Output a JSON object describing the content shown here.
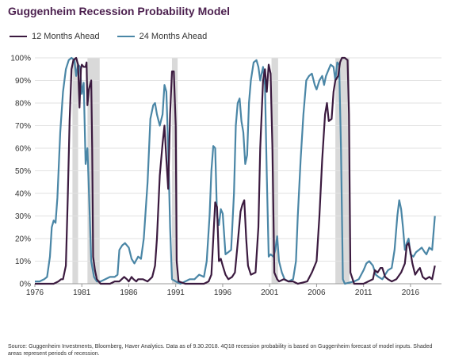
{
  "title": "Guggenheim Recession Probability Model",
  "footnote": "Source: Guggenheim Investments, Bloomberg, Haver Analytics. Data as of 9.30.2018. 4Q18 recession probability is based on Guggenheim forecast of model inputs. Shaded areas represent periods of recession.",
  "colors": {
    "series_12m": "#3b1a3f",
    "series_24m": "#4a86a6",
    "recession_shade": "#d9d9d9",
    "grid": "#e2e2e2",
    "title": "#4b1f4e"
  },
  "chart_data": {
    "type": "line",
    "title": "Guggenheim Recession Probability Model",
    "xlim": [
      1976,
      2019.3
    ],
    "ylim": [
      0,
      100
    ],
    "x_ticks": [
      1976,
      1981,
      1986,
      1991,
      1996,
      2001,
      2006,
      2011,
      2016
    ],
    "y_ticks": [
      "0%",
      "10%",
      "20%",
      "30%",
      "40%",
      "50%",
      "60%",
      "70%",
      "80%",
      "90%",
      "100%"
    ],
    "y_tick_values": [
      0,
      10,
      20,
      30,
      40,
      50,
      60,
      70,
      80,
      90,
      100
    ],
    "grid": "horizontal",
    "legend_position": "top-left",
    "recessions": [
      [
        1980.0,
        1980.6
      ],
      [
        1981.6,
        1982.9
      ],
      [
        1990.6,
        1991.2
      ],
      [
        2001.2,
        2001.9
      ],
      [
        2008.0,
        2009.5
      ]
    ],
    "series": [
      {
        "name": "12 Months Ahead",
        "color": "#3b1a3f",
        "points": [
          [
            1976.0,
            0
          ],
          [
            1977.0,
            0
          ],
          [
            1978.0,
            0
          ],
          [
            1978.5,
            1
          ],
          [
            1978.8,
            2
          ],
          [
            1979.0,
            2
          ],
          [
            1979.3,
            8
          ],
          [
            1979.5,
            38
          ],
          [
            1979.7,
            72
          ],
          [
            1979.9,
            95
          ],
          [
            1980.1,
            99
          ],
          [
            1980.4,
            100
          ],
          [
            1980.6,
            97
          ],
          [
            1980.75,
            78
          ],
          [
            1980.9,
            95
          ],
          [
            1981.0,
            97
          ],
          [
            1981.2,
            96
          ],
          [
            1981.4,
            96
          ],
          [
            1981.5,
            98
          ],
          [
            1981.6,
            79
          ],
          [
            1981.75,
            86
          ],
          [
            1982.0,
            90
          ],
          [
            1982.1,
            60
          ],
          [
            1982.2,
            12
          ],
          [
            1982.4,
            6
          ],
          [
            1982.6,
            2
          ],
          [
            1983.0,
            0
          ],
          [
            1984.0,
            0
          ],
          [
            1984.5,
            1
          ],
          [
            1985.0,
            1
          ],
          [
            1985.5,
            3
          ],
          [
            1985.8,
            2
          ],
          [
            1986.0,
            1
          ],
          [
            1986.3,
            3
          ],
          [
            1986.5,
            2
          ],
          [
            1986.8,
            1
          ],
          [
            1987.0,
            2
          ],
          [
            1987.5,
            2
          ],
          [
            1988.0,
            1
          ],
          [
            1988.5,
            3
          ],
          [
            1988.8,
            8
          ],
          [
            1989.0,
            20
          ],
          [
            1989.3,
            48
          ],
          [
            1989.6,
            62
          ],
          [
            1989.8,
            70
          ],
          [
            1990.0,
            55
          ],
          [
            1990.2,
            42
          ],
          [
            1990.4,
            75
          ],
          [
            1990.6,
            94
          ],
          [
            1990.8,
            94
          ],
          [
            1991.0,
            70
          ],
          [
            1991.1,
            10
          ],
          [
            1991.3,
            1
          ],
          [
            1992.0,
            0
          ],
          [
            1993.0,
            0
          ],
          [
            1994.0,
            0
          ],
          [
            1994.5,
            1
          ],
          [
            1994.8,
            4
          ],
          [
            1995.0,
            20
          ],
          [
            1995.2,
            36
          ],
          [
            1995.4,
            34
          ],
          [
            1995.6,
            10
          ],
          [
            1995.8,
            11
          ],
          [
            1996.0,
            8
          ],
          [
            1996.3,
            4
          ],
          [
            1996.6,
            2
          ],
          [
            1997.0,
            3
          ],
          [
            1997.3,
            5
          ],
          [
            1997.6,
            18
          ],
          [
            1997.9,
            32
          ],
          [
            1998.1,
            35
          ],
          [
            1998.3,
            37
          ],
          [
            1998.5,
            20
          ],
          [
            1998.7,
            8
          ],
          [
            1999.0,
            4
          ],
          [
            1999.5,
            5
          ],
          [
            1999.8,
            25
          ],
          [
            2000.0,
            60
          ],
          [
            2000.3,
            90
          ],
          [
            2000.5,
            95
          ],
          [
            2000.7,
            85
          ],
          [
            2000.9,
            97
          ],
          [
            2001.1,
            93
          ],
          [
            2001.3,
            60
          ],
          [
            2001.5,
            5
          ],
          [
            2001.8,
            2
          ],
          [
            2002.0,
            1
          ],
          [
            2002.5,
            2
          ],
          [
            2003.0,
            1
          ],
          [
            2003.5,
            1
          ],
          [
            2004.0,
            0
          ],
          [
            2005.0,
            1
          ],
          [
            2005.5,
            5
          ],
          [
            2006.0,
            10
          ],
          [
            2006.3,
            30
          ],
          [
            2006.6,
            55
          ],
          [
            2006.9,
            75
          ],
          [
            2007.1,
            80
          ],
          [
            2007.3,
            72
          ],
          [
            2007.6,
            73
          ],
          [
            2007.8,
            85
          ],
          [
            2008.0,
            90
          ],
          [
            2008.3,
            92
          ],
          [
            2008.5,
            98
          ],
          [
            2008.7,
            100
          ],
          [
            2009.0,
            100
          ],
          [
            2009.3,
            99
          ],
          [
            2009.45,
            75
          ],
          [
            2009.6,
            5
          ],
          [
            2010.0,
            0
          ],
          [
            2011.0,
            0
          ],
          [
            2011.5,
            1
          ],
          [
            2012.0,
            2
          ],
          [
            2012.2,
            6
          ],
          [
            2012.5,
            5
          ],
          [
            2012.8,
            7
          ],
          [
            2013.0,
            7
          ],
          [
            2013.3,
            3
          ],
          [
            2013.6,
            2
          ],
          [
            2014.0,
            1
          ],
          [
            2014.5,
            2
          ],
          [
            2015.0,
            5
          ],
          [
            2015.4,
            9
          ],
          [
            2015.6,
            17
          ],
          [
            2015.8,
            18
          ],
          [
            2016.0,
            14
          ],
          [
            2016.2,
            9
          ],
          [
            2016.5,
            4
          ],
          [
            2016.8,
            6
          ],
          [
            2017.0,
            7
          ],
          [
            2017.3,
            3
          ],
          [
            2017.6,
            2
          ],
          [
            2018.0,
            3
          ],
          [
            2018.3,
            2
          ],
          [
            2018.6,
            8
          ]
        ]
      },
      {
        "name": "24 Months Ahead",
        "color": "#4a86a6",
        "points": [
          [
            1976.0,
            1
          ],
          [
            1976.5,
            1
          ],
          [
            1977.0,
            2
          ],
          [
            1977.3,
            3
          ],
          [
            1977.6,
            12
          ],
          [
            1977.8,
            25
          ],
          [
            1978.0,
            28
          ],
          [
            1978.2,
            27
          ],
          [
            1978.4,
            38
          ],
          [
            1978.7,
            67
          ],
          [
            1979.0,
            85
          ],
          [
            1979.3,
            95
          ],
          [
            1979.6,
            99
          ],
          [
            1979.9,
            100
          ],
          [
            1980.2,
            99
          ],
          [
            1980.4,
            92
          ],
          [
            1980.6,
            97
          ],
          [
            1980.8,
            96
          ],
          [
            1981.0,
            84
          ],
          [
            1981.2,
            89
          ],
          [
            1981.4,
            53
          ],
          [
            1981.6,
            60
          ],
          [
            1981.75,
            42
          ],
          [
            1982.0,
            10
          ],
          [
            1982.3,
            3
          ],
          [
            1982.6,
            1
          ],
          [
            1983.0,
            1
          ],
          [
            1983.5,
            2
          ],
          [
            1984.0,
            3
          ],
          [
            1984.5,
            3
          ],
          [
            1984.8,
            4
          ],
          [
            1985.0,
            15
          ],
          [
            1985.3,
            17
          ],
          [
            1985.6,
            18
          ],
          [
            1986.0,
            16
          ],
          [
            1986.3,
            11
          ],
          [
            1986.6,
            9
          ],
          [
            1987.0,
            12
          ],
          [
            1987.3,
            11
          ],
          [
            1987.6,
            20
          ],
          [
            1988.0,
            45
          ],
          [
            1988.3,
            73
          ],
          [
            1988.6,
            79
          ],
          [
            1988.8,
            80
          ],
          [
            1989.0,
            75
          ],
          [
            1989.3,
            70
          ],
          [
            1989.6,
            75
          ],
          [
            1989.8,
            88
          ],
          [
            1990.0,
            85
          ],
          [
            1990.2,
            60
          ],
          [
            1990.4,
            25
          ],
          [
            1990.6,
            2
          ],
          [
            1991.0,
            1
          ],
          [
            1991.5,
            0
          ],
          [
            1992.0,
            1
          ],
          [
            1992.5,
            2
          ],
          [
            1993.0,
            2
          ],
          [
            1993.5,
            4
          ],
          [
            1994.0,
            3
          ],
          [
            1994.3,
            10
          ],
          [
            1994.6,
            30
          ],
          [
            1994.8,
            50
          ],
          [
            1995.0,
            61
          ],
          [
            1995.2,
            60
          ],
          [
            1995.4,
            30
          ],
          [
            1995.6,
            26
          ],
          [
            1995.8,
            33
          ],
          [
            1996.0,
            31
          ],
          [
            1996.3,
            13
          ],
          [
            1996.6,
            14
          ],
          [
            1996.9,
            15
          ],
          [
            1997.2,
            40
          ],
          [
            1997.4,
            70
          ],
          [
            1997.6,
            80
          ],
          [
            1997.8,
            82
          ],
          [
            1998.0,
            72
          ],
          [
            1998.2,
            67
          ],
          [
            1998.4,
            53
          ],
          [
            1998.6,
            57
          ],
          [
            1998.8,
            80
          ],
          [
            1999.0,
            90
          ],
          [
            1999.3,
            98
          ],
          [
            1999.6,
            99
          ],
          [
            1999.8,
            96
          ],
          [
            2000.0,
            90
          ],
          [
            2000.3,
            96
          ],
          [
            2000.5,
            88
          ],
          [
            2000.7,
            48
          ],
          [
            2000.9,
            12
          ],
          [
            2001.1,
            13
          ],
          [
            2001.4,
            12
          ],
          [
            2001.6,
            15
          ],
          [
            2001.8,
            21
          ],
          [
            2002.0,
            10
          ],
          [
            2002.3,
            5
          ],
          [
            2002.6,
            2
          ],
          [
            2003.0,
            1
          ],
          [
            2003.5,
            2
          ],
          [
            2003.8,
            10
          ],
          [
            2004.0,
            30
          ],
          [
            2004.3,
            55
          ],
          [
            2004.6,
            75
          ],
          [
            2004.9,
            90
          ],
          [
            2005.2,
            92
          ],
          [
            2005.5,
            93
          ],
          [
            2005.8,
            88
          ],
          [
            2006.0,
            86
          ],
          [
            2006.3,
            90
          ],
          [
            2006.6,
            92
          ],
          [
            2006.8,
            88
          ],
          [
            2007.0,
            92
          ],
          [
            2007.3,
            95
          ],
          [
            2007.5,
            97
          ],
          [
            2007.8,
            96
          ],
          [
            2008.0,
            90
          ],
          [
            2008.2,
            98
          ],
          [
            2008.4,
            97
          ],
          [
            2008.6,
            60
          ],
          [
            2008.8,
            2
          ],
          [
            2009.0,
            0
          ],
          [
            2010.0,
            1
          ],
          [
            2010.5,
            2
          ],
          [
            2011.0,
            6
          ],
          [
            2011.3,
            9
          ],
          [
            2011.6,
            10
          ],
          [
            2012.0,
            8
          ],
          [
            2012.3,
            4
          ],
          [
            2012.6,
            3
          ],
          [
            2013.0,
            2
          ],
          [
            2013.3,
            4
          ],
          [
            2013.6,
            6
          ],
          [
            2014.0,
            7
          ],
          [
            2014.3,
            15
          ],
          [
            2014.6,
            30
          ],
          [
            2014.8,
            37
          ],
          [
            2015.0,
            33
          ],
          [
            2015.2,
            25
          ],
          [
            2015.4,
            15
          ],
          [
            2015.6,
            18
          ],
          [
            2015.8,
            20
          ],
          [
            2016.0,
            13
          ],
          [
            2016.3,
            12
          ],
          [
            2016.6,
            14
          ],
          [
            2016.9,
            15
          ],
          [
            2017.2,
            16
          ],
          [
            2017.5,
            14
          ],
          [
            2017.7,
            13
          ],
          [
            2018.0,
            16
          ],
          [
            2018.3,
            15
          ],
          [
            2018.6,
            30
          ]
        ]
      }
    ]
  }
}
